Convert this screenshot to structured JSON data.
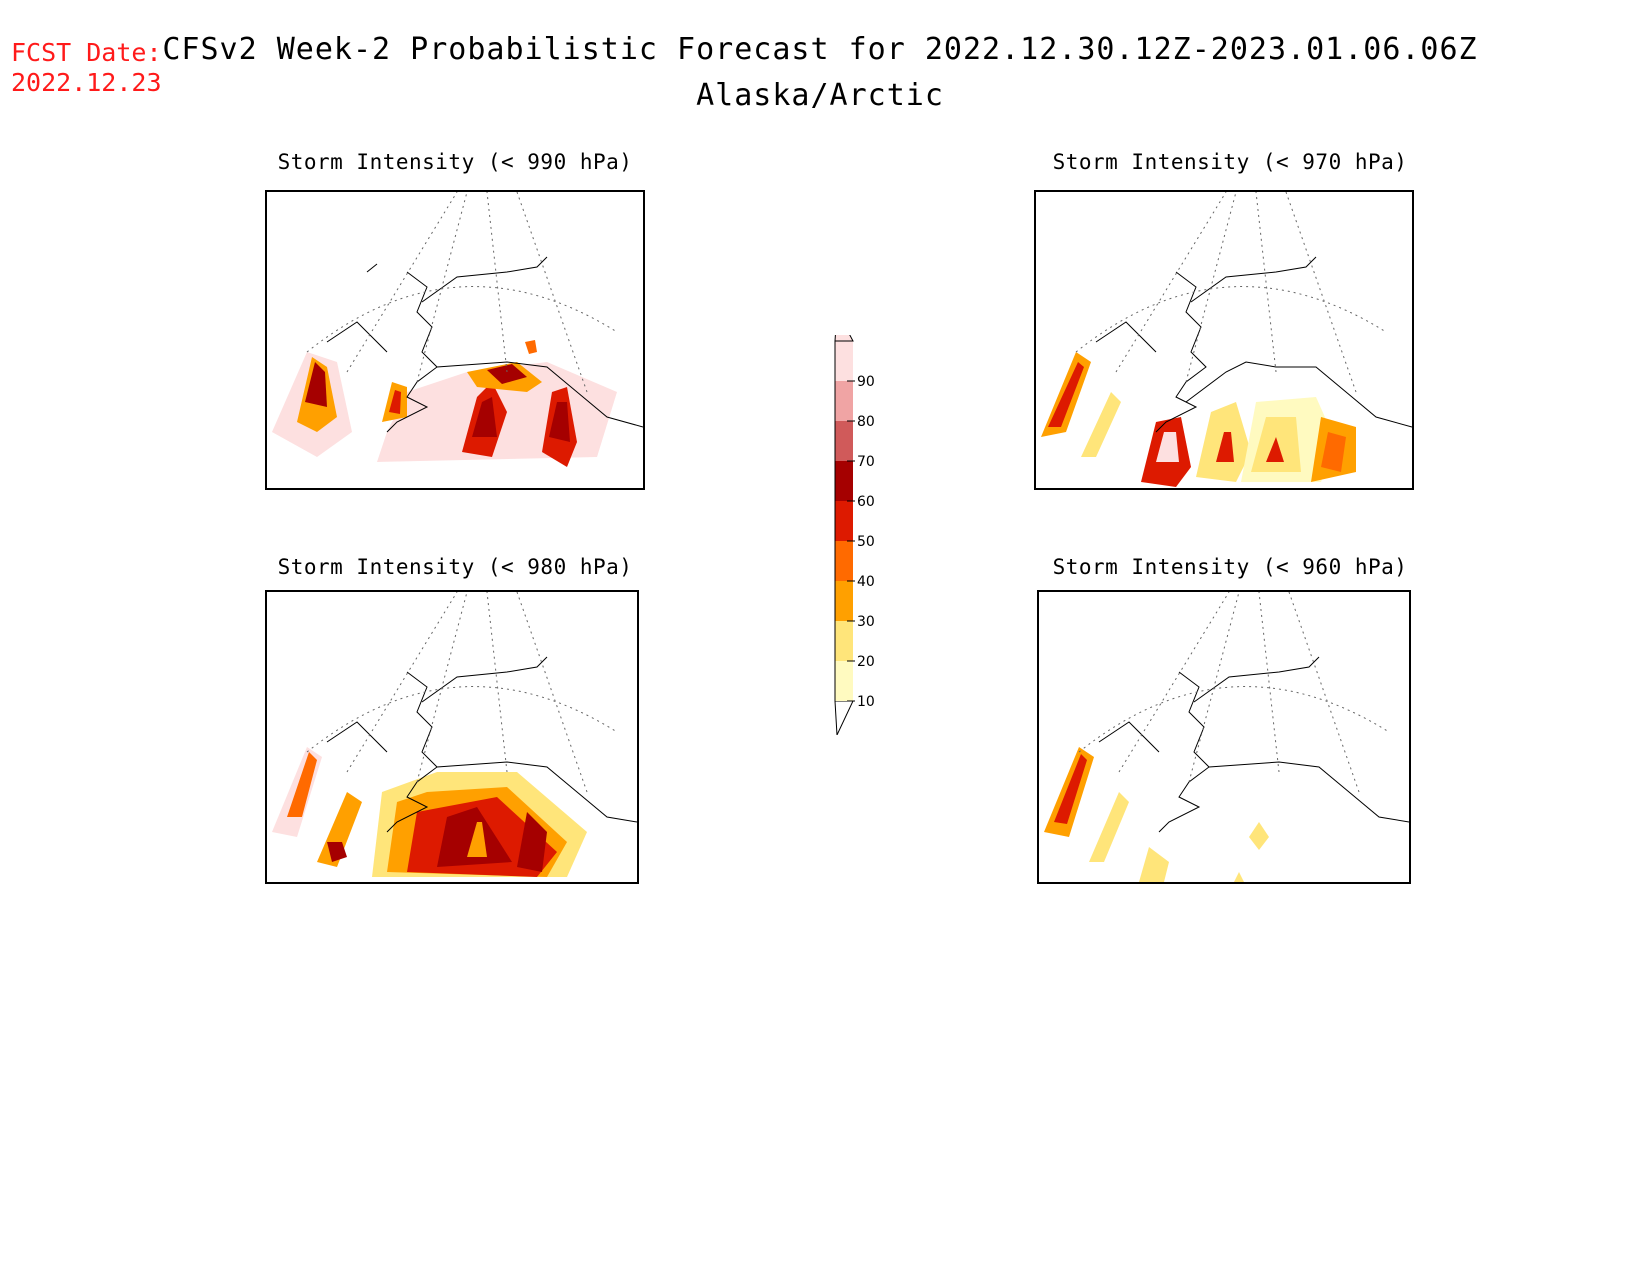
{
  "header": {
    "fcst_label": "FCST Date:",
    "fcst_date": "2022.12.23",
    "title": "CFSv2 Week-2 Probabilistic Forecast for 2022.12.30.12Z-2023.01.06.06Z",
    "subtitle": "Alaska/Arctic"
  },
  "panels": [
    {
      "id": "p990",
      "title": "Storm Intensity (< 990 hPa)"
    },
    {
      "id": "p970",
      "title": "Storm Intensity (< 970 hPa)"
    },
    {
      "id": "p980",
      "title": "Storm Intensity (< 980 hPa)"
    },
    {
      "id": "p960",
      "title": "Storm Intensity (< 960 hPa)"
    }
  ],
  "legend": {
    "levels": [
      "10",
      "20",
      "30",
      "40",
      "50",
      "60",
      "70",
      "80",
      "90"
    ],
    "colors": [
      "#fffac0",
      "#ffe57a",
      "#ffa000",
      "#ff6a00",
      "#dd1a00",
      "#a50000",
      "#d05a5a",
      "#f0a4a4",
      "#fde0e0"
    ]
  }
}
